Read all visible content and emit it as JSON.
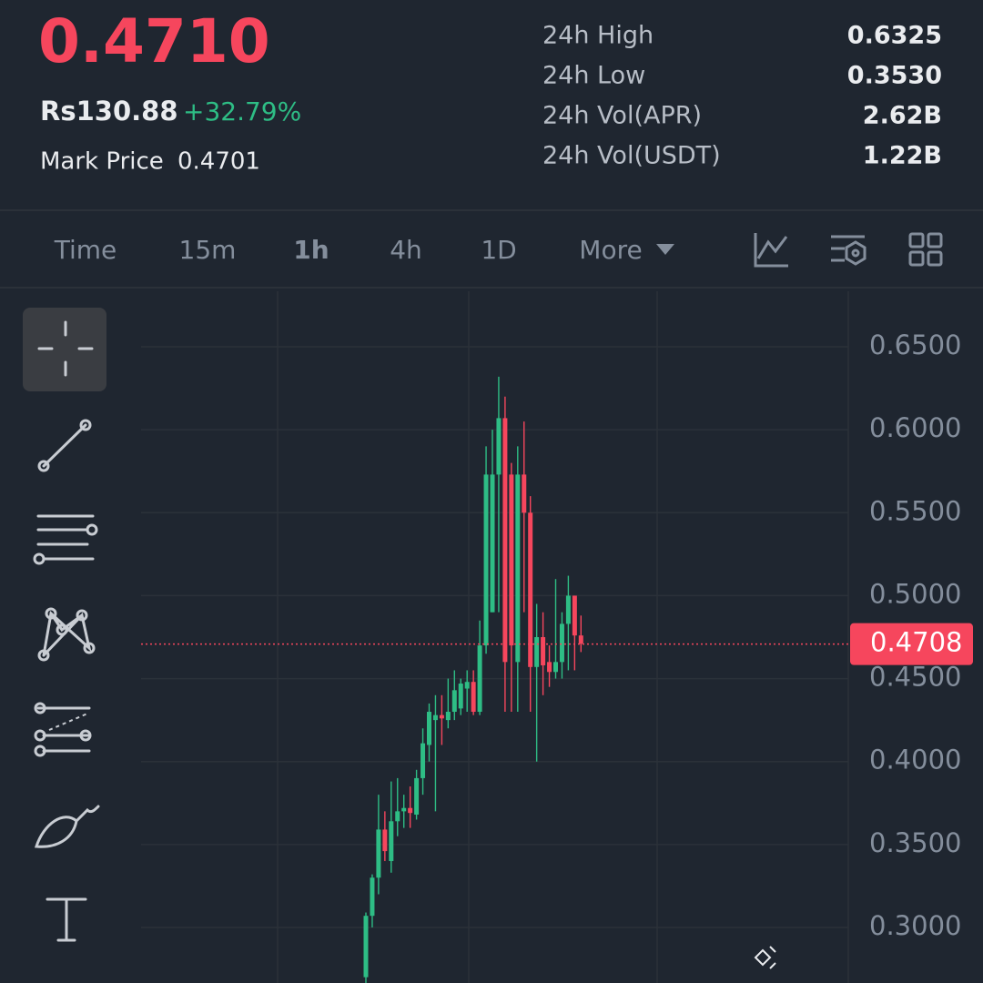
{
  "header": {
    "last_price": "0.4710",
    "fiat_price": "Rs130.88",
    "change": "+32.79%",
    "mark_price_label": "Mark Price",
    "mark_price": "0.4701",
    "stats": [
      {
        "label": "24h High",
        "value": "0.6325"
      },
      {
        "label": "24h Low",
        "value": "0.3530"
      },
      {
        "label": "24h Vol(APR)",
        "value": "2.62B"
      },
      {
        "label": "24h Vol(USDT)",
        "value": "1.22B"
      }
    ]
  },
  "tabs": [
    "Time",
    "15m",
    "1h",
    "4h",
    "1D",
    "More"
  ],
  "active_tab": 2,
  "chart_data": {
    "type": "candlestick",
    "open": [
      0.27,
      0.307,
      0.33,
      0.359,
      0.34,
      0.364,
      0.37,
      0.372,
      0.368,
      0.39,
      0.41,
      0.425,
      0.428,
      0.425,
      0.43,
      0.432,
      0.444,
      0.448,
      0.43,
      0.47,
      0.49,
      0.573,
      0.607,
      0.573,
      0.46,
      0.573,
      0.55,
      0.457,
      0.475,
      0.46,
      0.454,
      0.46,
      0.483,
      0.5,
      0.476
    ],
    "high": [
      0.309,
      0.332,
      0.38,
      0.37,
      0.388,
      0.39,
      0.38,
      0.385,
      0.395,
      0.42,
      0.435,
      0.44,
      0.44,
      0.45,
      0.455,
      0.45,
      0.455,
      0.455,
      0.485,
      0.59,
      0.6,
      0.632,
      0.62,
      0.58,
      0.59,
      0.605,
      0.56,
      0.495,
      0.49,
      0.47,
      0.51,
      0.49,
      0.512,
      0.5,
      0.488
    ],
    "low": [
      0.26,
      0.3,
      0.32,
      0.34,
      0.333,
      0.355,
      0.36,
      0.36,
      0.365,
      0.38,
      0.4,
      0.37,
      0.41,
      0.42,
      0.425,
      0.428,
      0.43,
      0.428,
      0.428,
      0.465,
      0.49,
      0.49,
      0.43,
      0.43,
      0.43,
      0.49,
      0.43,
      0.4,
      0.44,
      0.445,
      0.45,
      0.45,
      0.455,
      0.455,
      0.466
    ],
    "close": [
      0.307,
      0.33,
      0.359,
      0.346,
      0.364,
      0.37,
      0.372,
      0.369,
      0.39,
      0.411,
      0.43,
      0.428,
      0.426,
      0.43,
      0.443,
      0.447,
      0.448,
      0.43,
      0.47,
      0.573,
      0.573,
      0.607,
      0.46,
      0.47,
      0.573,
      0.55,
      0.457,
      0.475,
      0.458,
      0.454,
      0.46,
      0.483,
      0.5,
      0.476,
      0.471
    ],
    "ylim": [
      0.2665,
      0.6835
    ],
    "yticks": [
      {
        "value": 0.3,
        "label": "0.3000"
      },
      {
        "value": 0.35,
        "label": "0.3500"
      },
      {
        "value": 0.4,
        "label": "0.4000"
      },
      {
        "value": 0.45,
        "label": "0.4500"
      },
      {
        "value": 0.5,
        "label": "0.5000"
      },
      {
        "value": 0.55,
        "label": "0.5500"
      },
      {
        "value": 0.6,
        "label": "0.6000"
      },
      {
        "value": 0.65,
        "label": "0.6500"
      }
    ],
    "current_price": {
      "value": 0.4708,
      "label": "0.4708"
    },
    "up_color": "#2ebd85",
    "down_color": "#f6465d",
    "grid": true
  }
}
